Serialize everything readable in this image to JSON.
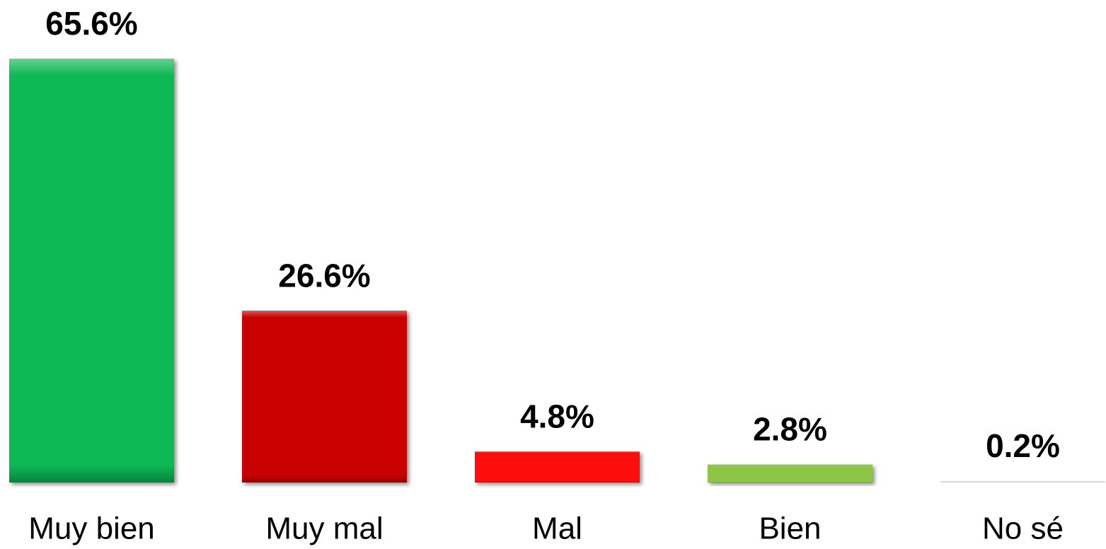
{
  "chart_data": {
    "type": "bar",
    "categories": [
      "Muy bien",
      "Muy mal",
      "Mal",
      "Bien",
      "No sé"
    ],
    "values": [
      65.6,
      26.6,
      4.8,
      2.8,
      0.2
    ],
    "value_labels": [
      "65.6%",
      "26.6%",
      "4.8%",
      "2.8%",
      "0.2%"
    ],
    "colors": [
      "#0bb955",
      "#c90606",
      "#fe0f0f",
      "#8dc646",
      "#dcdcdc"
    ]
  }
}
